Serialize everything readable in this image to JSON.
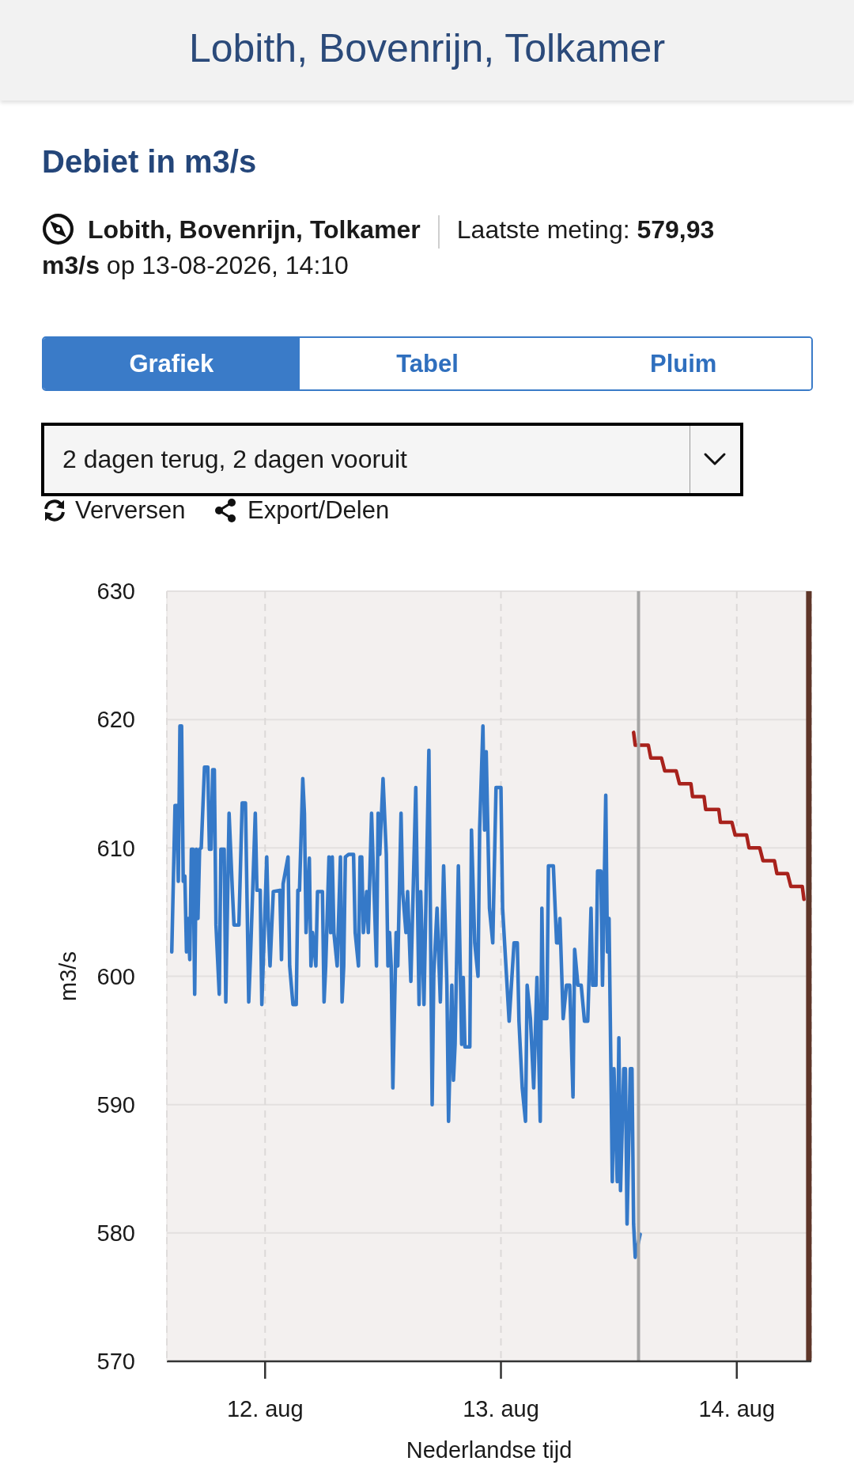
{
  "chart_data": {
    "type": "line",
    "title": "Lobith, Bovenrijn, Tolkamer",
    "subtitle": "Debiet in m3/s",
    "xlabel": "Nederlandse tijd",
    "ylabel": "m3/s",
    "annotations": [
      "Lobith, Bovenrijn, Tolkamer",
      "Laatste meting:",
      "579,93",
      "m3/s",
      "op 13-08-2026, 14:10",
      "Grafiek",
      "Tabel",
      "Pluim",
      "2 dagen terug, 2 dagen vooruit",
      "Verversen",
      "Export/Delen"
    ],
    "xlim": [
      "2026-08-11T14:00",
      "2026-08-14T07:35"
    ],
    "xticks": [
      {
        "value": "2026-08-12",
        "label": "12. aug"
      },
      {
        "value": "2026-08-13",
        "label": "13. aug"
      },
      {
        "value": "2026-08-14",
        "label": "14. aug"
      }
    ],
    "ylim": [
      570,
      630
    ],
    "yticks": [
      570,
      580,
      590,
      600,
      610,
      620,
      630
    ],
    "grid": true,
    "series": [
      {
        "color": "#3579c8",
        "x": [
          "2026-08-11T14:30",
          "2026-08-11T14:50",
          "2026-08-11T15:00",
          "2026-08-11T15:10",
          "2026-08-11T15:20",
          "2026-08-11T15:30",
          "2026-08-11T15:40",
          "2026-08-11T15:50",
          "2026-08-11T16:00",
          "2026-08-11T16:10",
          "2026-08-11T16:20",
          "2026-08-11T16:30",
          "2026-08-11T16:40",
          "2026-08-11T16:50",
          "2026-08-11T17:00",
          "2026-08-11T17:10",
          "2026-08-11T17:20",
          "2026-08-11T17:30",
          "2026-08-11T17:50",
          "2026-08-11T18:10",
          "2026-08-11T18:20",
          "2026-08-11T18:30",
          "2026-08-11T18:40",
          "2026-08-11T18:50",
          "2026-08-11T19:00",
          "2026-08-11T19:20",
          "2026-08-11T19:30",
          "2026-08-11T19:50",
          "2026-08-11T20:00",
          "2026-08-11T20:20",
          "2026-08-11T20:40",
          "2026-08-11T20:50",
          "2026-08-11T21:20",
          "2026-08-11T21:40",
          "2026-08-11T22:00",
          "2026-08-11T22:20",
          "2026-08-11T22:30",
          "2026-08-11T23:00",
          "2026-08-11T23:10",
          "2026-08-11T23:30",
          "2026-08-11T23:40",
          "2026-08-12T00:10",
          "2026-08-12T00:20",
          "2026-08-12T00:30",
          "2026-08-12T00:50",
          "2026-08-12T01:30",
          "2026-08-12T01:40",
          "2026-08-12T01:50",
          "2026-08-12T02:20",
          "2026-08-12T02:30",
          "2026-08-12T02:50",
          "2026-08-12T03:10",
          "2026-08-12T03:20",
          "2026-08-12T03:30",
          "2026-08-12T03:50",
          "2026-08-12T04:00",
          "2026-08-12T04:10",
          "2026-08-12T04:30",
          "2026-08-12T04:40",
          "2026-08-12T04:50",
          "2026-08-12T05:10",
          "2026-08-12T05:20",
          "2026-08-12T05:50",
          "2026-08-12T06:00",
          "2026-08-12T06:10",
          "2026-08-12T06:30",
          "2026-08-12T06:40",
          "2026-08-12T06:50",
          "2026-08-12T07:00",
          "2026-08-12T07:20",
          "2026-08-12T07:40",
          "2026-08-12T07:50",
          "2026-08-12T08:00",
          "2026-08-12T08:10",
          "2026-08-12T08:30",
          "2026-08-12T09:00",
          "2026-08-12T09:10",
          "2026-08-12T09:30",
          "2026-08-12T09:40",
          "2026-08-12T09:50",
          "2026-08-12T10:00",
          "2026-08-12T10:20",
          "2026-08-12T10:30",
          "2026-08-12T10:50",
          "2026-08-12T11:20",
          "2026-08-12T11:30",
          "2026-08-12T11:40",
          "2026-08-12T12:00",
          "2026-08-12T12:20",
          "2026-08-12T12:30",
          "2026-08-12T12:40",
          "2026-08-12T12:50",
          "2026-08-12T13:00",
          "2026-08-12T13:20",
          "2026-08-12T13:30",
          "2026-08-12T13:50",
          "2026-08-12T14:00",
          "2026-08-12T14:20",
          "2026-08-12T14:30",
          "2026-08-12T14:50",
          "2026-08-12T15:20",
          "2026-08-12T15:40",
          "2026-08-12T15:50",
          "2026-08-12T16:10",
          "2026-08-12T16:40",
          "2026-08-12T17:00",
          "2026-08-12T17:10",
          "2026-08-12T17:30",
          "2026-08-12T17:50",
          "2026-08-12T18:10",
          "2026-08-12T18:30",
          "2026-08-12T18:40",
          "2026-08-12T19:00",
          "2026-08-12T19:10",
          "2026-08-12T19:20",
          "2026-08-12T19:40",
          "2026-08-12T20:00",
          "2026-08-12T20:10",
          "2026-08-12T20:20",
          "2026-08-12T20:50",
          "2026-08-12T21:00",
          "2026-08-12T21:20",
          "2026-08-12T21:40",
          "2026-08-12T21:50",
          "2026-08-12T22:10",
          "2026-08-12T22:20",
          "2026-08-12T22:30",
          "2026-08-12T22:50",
          "2026-08-12T23:10",
          "2026-08-12T23:30",
          "2026-08-13T00:00",
          "2026-08-13T00:10",
          "2026-08-13T00:50",
          "2026-08-13T01:20",
          "2026-08-13T01:40",
          "2026-08-13T01:50",
          "2026-08-13T02:10",
          "2026-08-13T02:30",
          "2026-08-13T02:40",
          "2026-08-13T03:00",
          "2026-08-13T03:20",
          "2026-08-13T03:40",
          "2026-08-13T04:00",
          "2026-08-13T04:10",
          "2026-08-13T04:20",
          "2026-08-13T04:40",
          "2026-08-13T04:50",
          "2026-08-13T05:20",
          "2026-08-13T05:40",
          "2026-08-13T05:50",
          "2026-08-13T06:00",
          "2026-08-13T06:20",
          "2026-08-13T06:40",
          "2026-08-13T07:00",
          "2026-08-13T07:20",
          "2026-08-13T07:30",
          "2026-08-13T07:50",
          "2026-08-13T08:10",
          "2026-08-13T08:30",
          "2026-08-13T08:50",
          "2026-08-13T09:10",
          "2026-08-13T09:20",
          "2026-08-13T09:40",
          "2026-08-13T09:50",
          "2026-08-13T10:10",
          "2026-08-13T10:20",
          "2026-08-13T10:40",
          "2026-08-13T10:50",
          "2026-08-13T11:00",
          "2026-08-13T11:20",
          "2026-08-13T11:30",
          "2026-08-13T11:50",
          "2026-08-13T12:00",
          "2026-08-13T12:10",
          "2026-08-13T12:30",
          "2026-08-13T12:40",
          "2026-08-13T12:50",
          "2026-08-13T13:10",
          "2026-08-13T13:20",
          "2026-08-13T13:30",
          "2026-08-13T13:40",
          "2026-08-13T14:10"
        ],
        "values": [
          601.9,
          613.3,
          613.3,
          607.4,
          619.5,
          619.5,
          607.4,
          607.8,
          601.9,
          604.5,
          601.3,
          609.9,
          609.9,
          598.6,
          609.9,
          604.5,
          609.9,
          610.0,
          616.3,
          616.3,
          609.9,
          609.9,
          616.1,
          616.1,
          604.0,
          598.6,
          609.9,
          609.9,
          598.0,
          612.7,
          606.7,
          604.0,
          604.0,
          613.5,
          613.5,
          598.0,
          601.3,
          612.7,
          606.7,
          606.7,
          597.8,
          609.3,
          604.0,
          600.8,
          606.6,
          606.7,
          601.3,
          607.2,
          609.3,
          600.8,
          597.8,
          597.8,
          606.7,
          606.7,
          615.4,
          612.7,
          603.4,
          609.2,
          600.8,
          603.4,
          600.8,
          606.6,
          606.6,
          598.0,
          600.8,
          609.3,
          603.4,
          609.3,
          603.4,
          600.8,
          609.3,
          598.0,
          600.8,
          609.3,
          609.5,
          609.5,
          603.4,
          600.8,
          609.3,
          609.3,
          603.4,
          606.6,
          603.4,
          612.7,
          600.8,
          612.7,
          609.5,
          615.4,
          609.5,
          600.8,
          603.4,
          600.8,
          591.3,
          603.4,
          600.8,
          612.7,
          606.6,
          603.4,
          606.6,
          599.6,
          614.7,
          597.8,
          606.6,
          597.8,
          617.6,
          590.0,
          600.2,
          605.3,
          598.0,
          608.6,
          599.3,
          588.7,
          599.3,
          591.9,
          594.7,
          608.6,
          594.7,
          599.9,
          594.5,
          594.5,
          611.4,
          602.6,
          600.0,
          611.5,
          619.5,
          611.4,
          617.5,
          605.3,
          602.6,
          614.7,
          614.7,
          605.3,
          596.5,
          602.6,
          602.6,
          596.5,
          591.3,
          588.7,
          599.3,
          596.7,
          591.3,
          599.9,
          588.7,
          605.3,
          596.7,
          596.7,
          608.6,
          608.6,
          602.6,
          602.6,
          604.5,
          596.7,
          599.3,
          599.3,
          590.6,
          602.1,
          599.3,
          599.3,
          596.5,
          596.5,
          605.3,
          599.3,
          599.3,
          608.2,
          608.2,
          599.3,
          614.1,
          601.9,
          604.5,
          584.0,
          592.8,
          584.0,
          595.2,
          583.3,
          592.8,
          592.8,
          580.7,
          592.8,
          592.8,
          580.7,
          578.1,
          579.9
        ]
      },
      {
        "color": "#a8221c",
        "x": [
          "2026-08-13T13:30",
          "2026-08-13T13:40",
          "2026-08-13T15:00",
          "2026-08-13T15:15",
          "2026-08-13T16:20",
          "2026-08-13T16:40",
          "2026-08-13T17:50",
          "2026-08-13T18:10",
          "2026-08-13T19:20",
          "2026-08-13T19:30",
          "2026-08-13T20:40",
          "2026-08-13T20:50",
          "2026-08-13T22:10",
          "2026-08-13T22:20",
          "2026-08-13T23:30",
          "2026-08-13T23:50",
          "2026-08-14T01:00",
          "2026-08-14T01:15",
          "2026-08-14T02:20",
          "2026-08-14T02:40",
          "2026-08-14T03:50",
          "2026-08-14T04:05",
          "2026-08-14T05:10",
          "2026-08-14T05:30",
          "2026-08-14T06:40",
          "2026-08-14T06:50"
        ],
        "values": [
          619,
          618,
          618,
          617,
          617,
          616,
          616,
          615,
          615,
          614,
          614,
          613,
          613,
          612,
          612,
          611,
          611,
          610,
          610,
          609,
          609,
          608,
          608,
          607,
          607,
          606
        ]
      }
    ],
    "ref_lines": [
      {
        "axis": "x",
        "value": "2026-08-13T14:00",
        "color": "#a6a6a6"
      },
      {
        "axis": "x",
        "value": "2026-08-14T07:20",
        "color": "#5e3528"
      }
    ]
  }
}
